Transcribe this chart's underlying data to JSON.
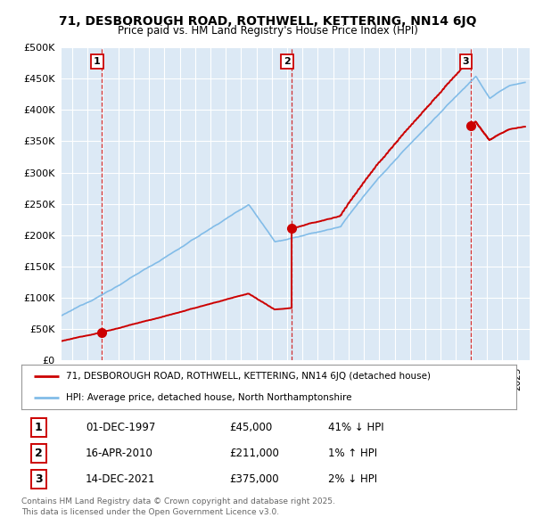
{
  "title_line1": "71, DESBOROUGH ROAD, ROTHWELL, KETTERING, NN14 6JQ",
  "title_line2": "Price paid vs. HM Land Registry's House Price Index (HPI)",
  "ylim": [
    0,
    500000
  ],
  "yticks": [
    0,
    50000,
    100000,
    150000,
    200000,
    250000,
    300000,
    350000,
    400000,
    450000,
    500000
  ],
  "ytick_labels": [
    "£0",
    "£50K",
    "£100K",
    "£150K",
    "£200K",
    "£250K",
    "£300K",
    "£350K",
    "£400K",
    "£450K",
    "£500K"
  ],
  "sale_dates": [
    1997.92,
    2010.29,
    2021.95
  ],
  "sale_prices": [
    45000,
    211000,
    375000
  ],
  "sale_labels": [
    "1",
    "2",
    "3"
  ],
  "hpi_color": "#82bce8",
  "sale_color": "#cc0000",
  "vline_color": "#cc0000",
  "background_color": "#ffffff",
  "plot_bg_color": "#dce9f5",
  "grid_color": "#ffffff",
  "legend_entries": [
    "71, DESBOROUGH ROAD, ROTHWELL, KETTERING, NN14 6JQ (detached house)",
    "HPI: Average price, detached house, North Northamptonshire"
  ],
  "table_entries": [
    {
      "num": "1",
      "date": "01-DEC-1997",
      "price": "£45,000",
      "hpi": "41% ↓ HPI"
    },
    {
      "num": "2",
      "date": "16-APR-2010",
      "price": "£211,000",
      "hpi": "1% ↑ HPI"
    },
    {
      "num": "3",
      "date": "14-DEC-2021",
      "price": "£375,000",
      "hpi": "2% ↓ HPI"
    }
  ],
  "footer": "Contains HM Land Registry data © Crown copyright and database right 2025.\nThis data is licensed under the Open Government Licence v3.0.",
  "xlim_start": 1995.3,
  "xlim_end": 2025.8
}
